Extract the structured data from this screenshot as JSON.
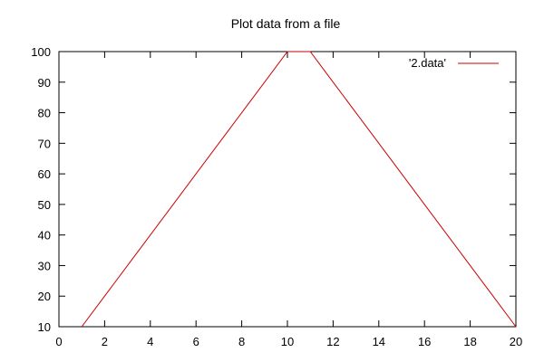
{
  "chart_data": {
    "type": "line",
    "title": "Plot data from a file",
    "xlabel": "",
    "ylabel": "",
    "xlim": [
      0,
      20
    ],
    "ylim": [
      10,
      100
    ],
    "xticks": [
      0,
      2,
      4,
      6,
      8,
      10,
      12,
      14,
      16,
      18,
      20
    ],
    "yticks": [
      10,
      20,
      30,
      40,
      50,
      60,
      70,
      80,
      90,
      100
    ],
    "grid": false,
    "legend_position": "top-right",
    "series": [
      {
        "name": "'2.data'",
        "color": "#cc0000",
        "x": [
          1,
          2,
          3,
          4,
          5,
          6,
          7,
          8,
          9,
          10,
          11,
          12,
          13,
          14,
          15,
          16,
          17,
          18,
          19,
          20
        ],
        "y": [
          10,
          20,
          30,
          40,
          50,
          60,
          70,
          80,
          90,
          100,
          100,
          90,
          80,
          70,
          60,
          50,
          40,
          30,
          20,
          10
        ]
      }
    ]
  }
}
